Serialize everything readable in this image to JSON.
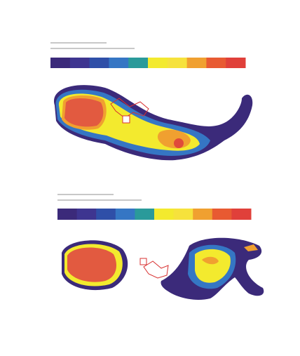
{
  "colorbars": [
    {
      "colors": [
        "#3b2a7a",
        "#3e3590",
        "#2f4fa8",
        "#3576c4",
        "#2a9a9a",
        "#f3ea2e",
        "#f6e23c",
        "#f0a030",
        "#e85a32",
        "#e0403a"
      ]
    },
    {
      "colors": [
        "#3b2a7a",
        "#3e3590",
        "#2f4fa8",
        "#3576c4",
        "#2a9a9a",
        "#f3ea2e",
        "#f6e23c",
        "#f0a030",
        "#e85a32",
        "#e0403a"
      ]
    }
  ]
}
